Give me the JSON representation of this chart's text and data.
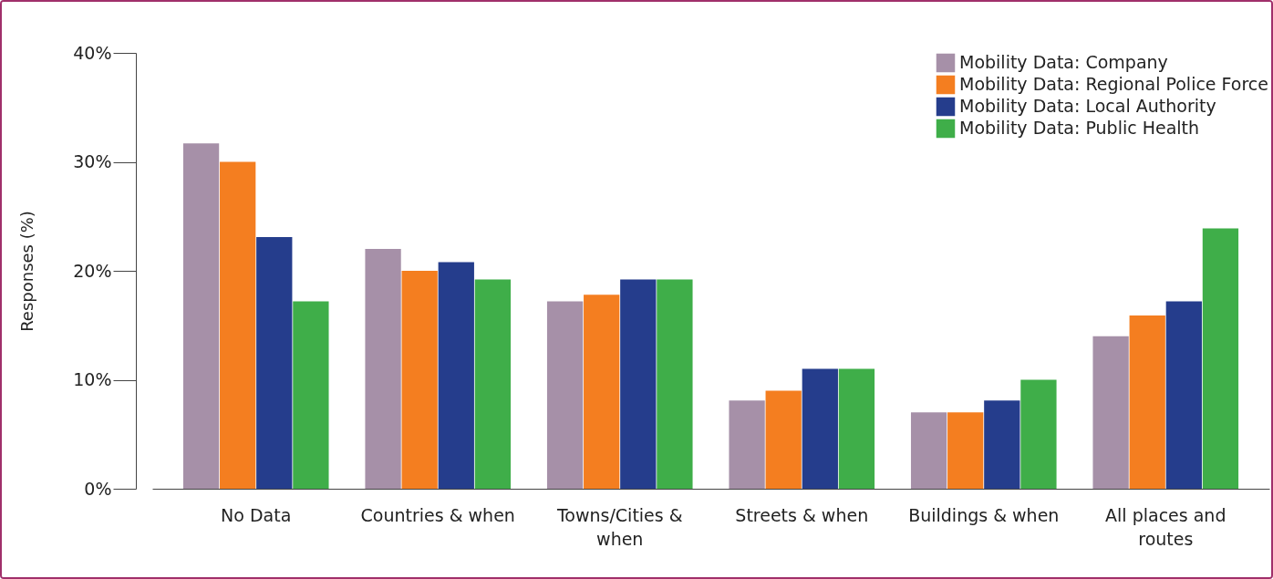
{
  "chart_data": {
    "type": "bar",
    "ylabel": "Responses (%)",
    "categories": [
      "No Data",
      "Countries & when",
      "Towns/Cities & when",
      "Streets & when",
      "Buildings & when",
      "All places and routes"
    ],
    "series": [
      {
        "name": "Mobility Data: Company",
        "color": "#a690a8",
        "values": [
          31.7,
          22.0,
          17.2,
          8.1,
          7.0,
          14.0
        ]
      },
      {
        "name": "Mobility Data: Regional Police Force",
        "color": "#f47e20",
        "values": [
          30.0,
          20.0,
          17.8,
          9.0,
          7.0,
          15.9
        ]
      },
      {
        "name": "Mobility Data: Local Authority",
        "color": "#253d8c",
        "values": [
          23.1,
          20.8,
          19.2,
          11.0,
          8.1,
          17.2
        ]
      },
      {
        "name": "Mobility Data: Public Health",
        "color": "#3fae49",
        "values": [
          17.2,
          19.2,
          19.2,
          11.0,
          10.0,
          23.9
        ]
      }
    ],
    "ylim": [
      0,
      40
    ],
    "yticks": [
      {
        "value": 0,
        "label": "0%"
      },
      {
        "value": 10,
        "label": "10%"
      },
      {
        "value": 20,
        "label": "20%"
      },
      {
        "value": 30,
        "label": "30%"
      },
      {
        "value": 40,
        "label": "40%"
      }
    ],
    "grid": false,
    "legend": "top right"
  }
}
